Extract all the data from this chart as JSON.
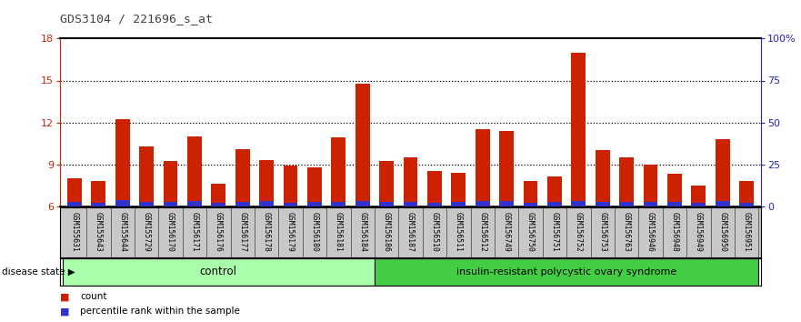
{
  "title": "GDS3104 / 221696_s_at",
  "samples": [
    "GSM155631",
    "GSM155643",
    "GSM155644",
    "GSM155729",
    "GSM156170",
    "GSM156171",
    "GSM156176",
    "GSM156177",
    "GSM156178",
    "GSM156179",
    "GSM156180",
    "GSM156181",
    "GSM156184",
    "GSM156186",
    "GSM156187",
    "GSM156510",
    "GSM156511",
    "GSM156512",
    "GSM156749",
    "GSM156750",
    "GSM156751",
    "GSM156752",
    "GSM156753",
    "GSM156763",
    "GSM156946",
    "GSM156948",
    "GSM156949",
    "GSM156950",
    "GSM156951"
  ],
  "count_values": [
    8.0,
    7.8,
    12.2,
    10.3,
    9.2,
    11.0,
    7.6,
    10.1,
    9.3,
    8.9,
    8.8,
    10.9,
    14.8,
    9.2,
    9.5,
    8.5,
    8.4,
    11.5,
    11.4,
    7.8,
    8.1,
    17.0,
    10.0,
    9.5,
    9.0,
    8.3,
    7.5,
    10.8,
    7.8
  ],
  "percentile_values": [
    0.28,
    0.22,
    0.42,
    0.3,
    0.32,
    0.38,
    0.22,
    0.3,
    0.34,
    0.26,
    0.28,
    0.32,
    0.38,
    0.3,
    0.28,
    0.26,
    0.3,
    0.34,
    0.34,
    0.26,
    0.3,
    0.38,
    0.32,
    0.3,
    0.28,
    0.32,
    0.26,
    0.34,
    0.26
  ],
  "group_labels": [
    "control",
    "insulin-resistant polycystic ovary syndrome"
  ],
  "group_control_count": 13,
  "ymin": 6,
  "ymax": 18,
  "yticks_left": [
    6,
    9,
    12,
    15,
    18
  ],
  "yticks_right_vals": [
    0,
    25,
    50,
    75,
    100
  ],
  "yticks_right_labels": [
    "0",
    "25",
    "50",
    "75",
    "100%"
  ],
  "bar_color_red": "#cc2200",
  "bar_color_blue": "#3333cc",
  "bg_color_plot": "#ffffff",
  "bg_color_labels": "#c8c8c8",
  "group_color_control": "#aaffaa",
  "group_color_disease": "#44cc44",
  "title_color": "#444444",
  "axis_label_color_left": "#cc2200",
  "axis_label_color_right": "#2222bb",
  "legend_count_label": "count",
  "legend_percentile_label": "percentile rank within the sample",
  "disease_state_label": "disease state"
}
